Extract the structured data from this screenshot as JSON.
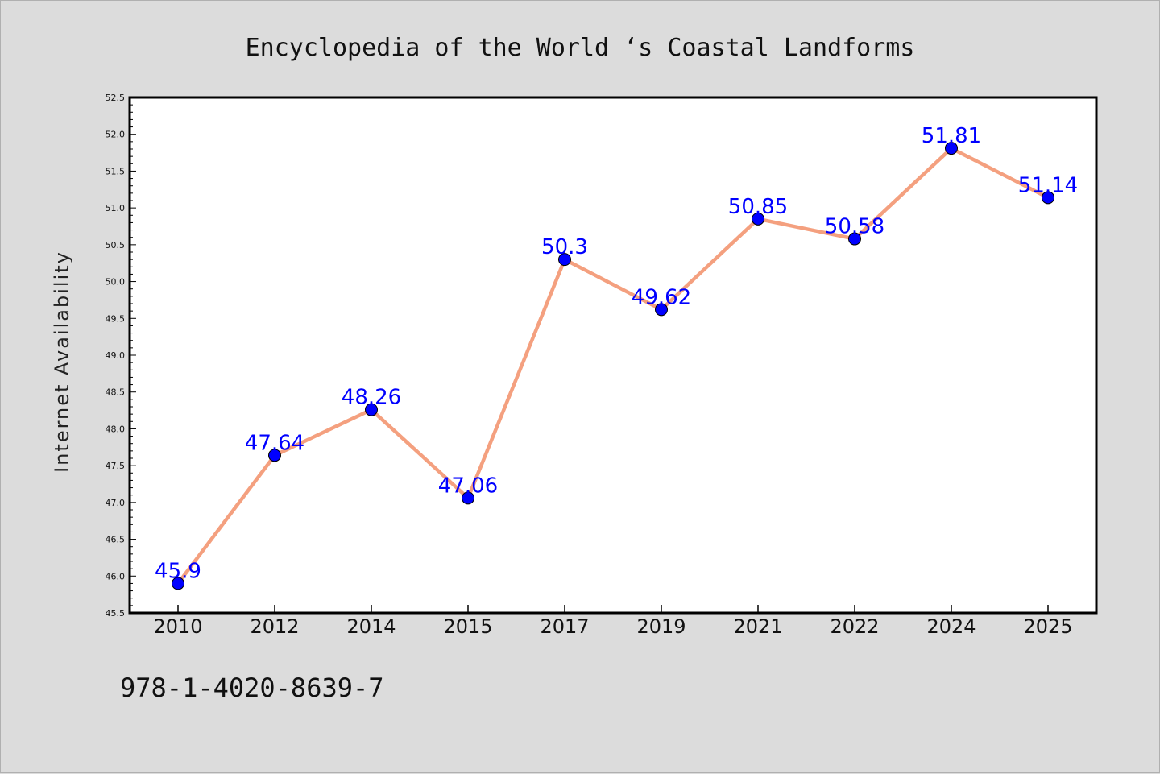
{
  "chart_data": {
    "type": "line",
    "title": "Encyclopedia of the World ‘s Coastal Landforms",
    "xlabel": "",
    "ylabel": "Internet Availability",
    "x": [
      "2010",
      "2012",
      "2014",
      "2015",
      "2017",
      "2019",
      "2021",
      "2022",
      "2024",
      "2025"
    ],
    "series": [
      {
        "values": [
          45.9,
          47.64,
          48.26,
          47.06,
          50.3,
          49.62,
          50.85,
          50.58,
          51.81,
          51.14
        ],
        "data_labels": [
          "45.9",
          "47.64",
          "48.26",
          "47.06",
          "50.3",
          "49.62",
          "50.85",
          "50.58",
          "51.81",
          "51.14"
        ]
      }
    ],
    "ylim": [
      45.5,
      52.5
    ],
    "yticks": [
      "45.5",
      "46.0",
      "46.5",
      "47.0",
      "47.5",
      "48.0",
      "48.5",
      "49.0",
      "49.5",
      "50.0",
      "50.5",
      "51.0",
      "51.5",
      "52.0",
      "52.5"
    ],
    "grid": false,
    "line_color": "#f4a07f",
    "marker_color": "#0000ff",
    "label_color": "#0000ff"
  },
  "footer": {
    "isbn": "978-1-4020-8639-7"
  }
}
